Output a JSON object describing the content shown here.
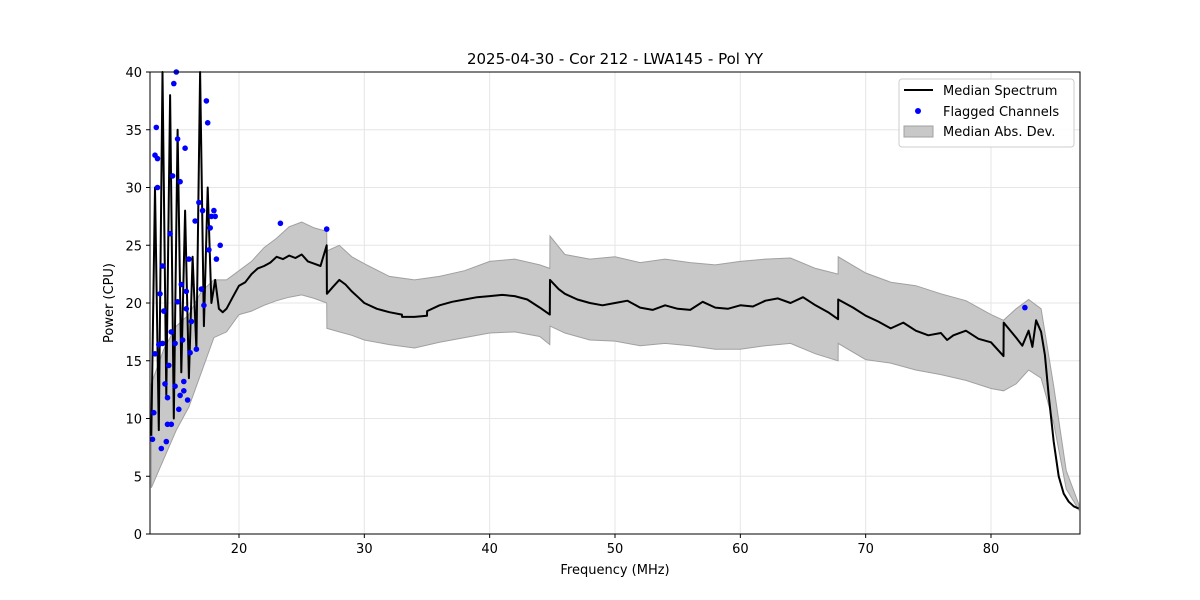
{
  "chart_data": {
    "type": "line",
    "title": "2025-04-30 - Cor 212 - LWA145 - Pol YY",
    "xlabel": "Frequency (MHz)",
    "ylabel": "Power (CPU)",
    "xlim": [
      12.9,
      87.1
    ],
    "ylim": [
      0,
      40
    ],
    "x_ticks": [
      20,
      30,
      40,
      50,
      60,
      70,
      80
    ],
    "y_ticks": [
      0,
      5,
      10,
      15,
      20,
      25,
      30,
      35,
      40
    ],
    "grid": true,
    "legend_position": "top-right",
    "colors": {
      "median": "#000000",
      "flagged": "#0000ff",
      "mad_fill": "#c8c8c8",
      "mad_edge": "#a0a0a0",
      "grid": "#e6e6e6"
    },
    "legend": [
      {
        "label": "Median Spectrum",
        "kind": "line"
      },
      {
        "label": "Flagged Channels",
        "kind": "marker"
      },
      {
        "label": "Median Abs. Dev.",
        "kind": "patch"
      }
    ],
    "series": [
      {
        "name": "Median Spectrum",
        "x": [
          13.0,
          13.3,
          13.6,
          13.9,
          14.2,
          14.5,
          14.8,
          15.1,
          15.4,
          15.7,
          16.0,
          16.3,
          16.6,
          16.9,
          17.2,
          17.5,
          17.8,
          18.1,
          18.4,
          18.7,
          19.0,
          19.5,
          20.0,
          20.5,
          21.0,
          21.5,
          22.0,
          22.5,
          23.0,
          23.5,
          24.0,
          24.5,
          25.0,
          25.5,
          26.0,
          26.5,
          27.0,
          27.01,
          27.5,
          28.0,
          28.5,
          29.0,
          29.5,
          30.0,
          31.0,
          32.0,
          33.0,
          33.01,
          34.0,
          35.0,
          35.01,
          36.0,
          37.0,
          38.0,
          39.0,
          40.0,
          41.0,
          42.0,
          43.0,
          44.0,
          44.8,
          44.81,
          45.5,
          46.0,
          47.0,
          48.0,
          49.0,
          50.0,
          51.0,
          52.0,
          53.0,
          54.0,
          55.0,
          56.0,
          57.0,
          58.0,
          59.0,
          60.0,
          61.0,
          62.0,
          63.0,
          64.0,
          65.0,
          66.0,
          67.0,
          67.8,
          67.81,
          69.0,
          70.0,
          71.0,
          72.0,
          73.0,
          74.0,
          75.0,
          76.0,
          76.5,
          77.0,
          78.0,
          79.0,
          80.0,
          81.0,
          81.01,
          82.0,
          82.5,
          83.0,
          83.3,
          83.6,
          84.0,
          84.3,
          84.6,
          85.0,
          85.4,
          85.8,
          86.2,
          86.6,
          87.0
        ],
        "values": [
          8.5,
          30.0,
          9.0,
          40.0,
          12.0,
          38.0,
          10.0,
          35.0,
          14.0,
          28.0,
          13.5,
          24.0,
          16.0,
          40.0,
          18.0,
          30.0,
          20.0,
          22.0,
          19.5,
          19.2,
          19.5,
          20.5,
          21.5,
          21.8,
          22.5,
          23.0,
          23.2,
          23.5,
          24.0,
          23.8,
          24.1,
          23.9,
          24.2,
          23.6,
          23.4,
          23.2,
          25.0,
          20.8,
          21.4,
          22.0,
          21.6,
          21.0,
          20.5,
          20.0,
          19.5,
          19.2,
          19.0,
          18.8,
          18.8,
          18.9,
          19.3,
          19.8,
          20.1,
          20.3,
          20.5,
          20.6,
          20.7,
          20.6,
          20.3,
          19.6,
          19.0,
          22.0,
          21.2,
          20.8,
          20.3,
          20.0,
          19.8,
          20.0,
          20.2,
          19.6,
          19.4,
          19.8,
          19.5,
          19.4,
          20.1,
          19.6,
          19.5,
          19.8,
          19.7,
          20.2,
          20.4,
          20.0,
          20.5,
          19.8,
          19.2,
          18.6,
          20.3,
          19.6,
          18.9,
          18.4,
          17.8,
          18.3,
          17.6,
          17.2,
          17.4,
          16.8,
          17.2,
          17.6,
          16.9,
          16.6,
          15.4,
          18.3,
          17.0,
          16.3,
          17.6,
          16.2,
          18.5,
          17.5,
          15.5,
          12.0,
          8.0,
          5.0,
          3.5,
          2.8,
          2.4,
          2.2
        ]
      },
      {
        "name": "Median Abs. Dev.",
        "x": [
          13.0,
          14.0,
          15.0,
          16.0,
          17.0,
          18.0,
          19.0,
          20.0,
          21.0,
          22.0,
          23.0,
          24.0,
          25.0,
          26.0,
          27.0,
          27.01,
          28.0,
          29.0,
          30.0,
          32.0,
          34.0,
          36.0,
          38.0,
          40.0,
          42.0,
          44.0,
          44.8,
          44.81,
          46.0,
          48.0,
          50.0,
          52.0,
          54.0,
          56.0,
          58.0,
          60.0,
          62.0,
          64.0,
          66.0,
          67.8,
          67.81,
          70.0,
          72.0,
          74.0,
          76.0,
          78.0,
          80.0,
          81.0,
          82.0,
          83.0,
          84.0,
          85.0,
          86.0,
          87.0
        ],
        "upper": [
          13.0,
          16.0,
          18.0,
          19.0,
          21.0,
          22.0,
          22.0,
          22.8,
          23.6,
          24.8,
          25.6,
          26.6,
          27.0,
          26.5,
          26.2,
          24.5,
          25.0,
          24.0,
          23.4,
          22.3,
          22.0,
          22.3,
          22.8,
          23.6,
          23.8,
          23.3,
          23.0,
          25.8,
          24.2,
          23.8,
          24.0,
          23.5,
          23.8,
          23.5,
          23.3,
          23.6,
          23.8,
          23.9,
          23.0,
          22.5,
          24.0,
          22.6,
          21.8,
          21.5,
          20.8,
          20.2,
          19.0,
          18.5,
          19.5,
          20.3,
          19.5,
          12.8,
          5.5,
          2.6
        ],
        "lower": [
          4.0,
          6.5,
          9.0,
          11.0,
          14.0,
          17.0,
          17.5,
          19.0,
          19.3,
          19.8,
          20.2,
          20.5,
          20.7,
          20.4,
          20.0,
          17.8,
          17.5,
          17.2,
          16.8,
          16.4,
          16.1,
          16.6,
          17.0,
          17.4,
          17.5,
          17.1,
          16.4,
          18.0,
          17.4,
          16.8,
          16.7,
          16.3,
          16.5,
          16.3,
          16.0,
          16.0,
          16.3,
          16.5,
          15.6,
          15.0,
          16.5,
          15.1,
          14.8,
          14.2,
          13.8,
          13.3,
          12.6,
          12.4,
          13.0,
          14.2,
          13.5,
          9.6,
          3.9,
          2.1
        ]
      },
      {
        "name": "Flagged Channels",
        "x": [
          13.1,
          13.2,
          13.3,
          13.4,
          13.5,
          13.6,
          13.7,
          13.8,
          13.9,
          14.0,
          14.1,
          14.2,
          14.3,
          14.4,
          14.5,
          14.6,
          14.7,
          14.8,
          14.9,
          15.0,
          15.1,
          15.2,
          15.3,
          15.4,
          15.5,
          15.6,
          15.7,
          15.8,
          15.9,
          16.0,
          16.1,
          16.2,
          16.5,
          16.8,
          17.0,
          17.2,
          17.4,
          17.5,
          17.6,
          17.8,
          18.0,
          18.2,
          18.5,
          23.3,
          27.0,
          82.7,
          13.5,
          13.9,
          14.3,
          14.9,
          15.3,
          15.8,
          16.6,
          17.1,
          17.7,
          18.1,
          14.6,
          15.1,
          15.6,
          13.3
        ],
        "values": [
          8.2,
          10.5,
          15.6,
          35.2,
          30.0,
          16.4,
          20.8,
          7.4,
          23.2,
          19.3,
          13.0,
          8.0,
          11.8,
          14.6,
          26.0,
          9.5,
          31.0,
          39.0,
          12.8,
          40.0,
          20.1,
          10.8,
          30.5,
          21.6,
          16.8,
          12.4,
          33.4,
          19.5,
          11.6,
          23.8,
          15.7,
          18.4,
          27.1,
          28.7,
          21.2,
          19.8,
          37.5,
          35.6,
          24.6,
          27.5,
          28.0,
          23.8,
          25.0,
          26.9,
          26.4,
          19.6,
          32.5,
          16.5,
          9.5,
          16.5,
          12.0,
          21.0,
          16.0,
          28.0,
          26.5,
          27.5,
          17.5,
          34.2,
          13.2,
          32.8
        ]
      }
    ]
  }
}
